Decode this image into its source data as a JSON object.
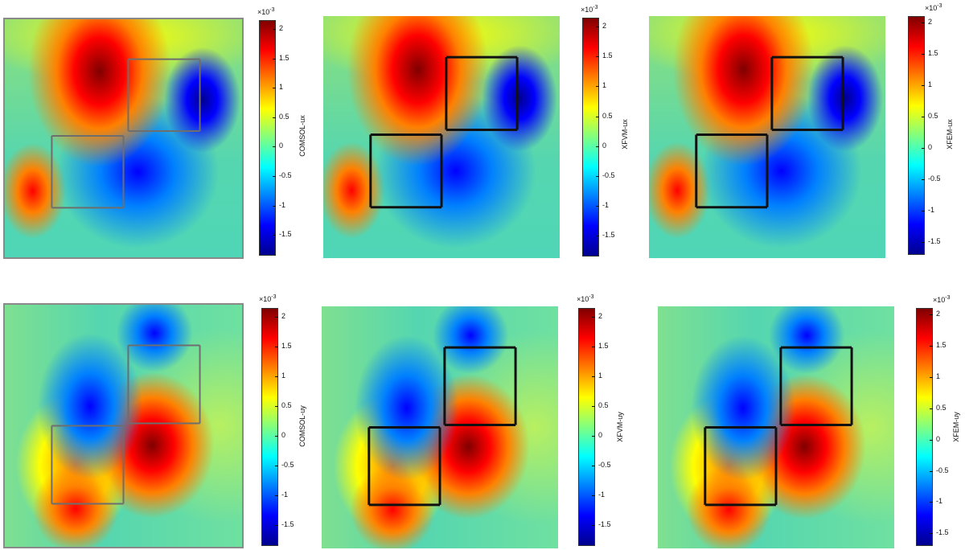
{
  "colors": {
    "c0": "#00008f",
    "c1": "#0000ff",
    "c2": "#0080ff",
    "c3": "#00ffff",
    "c4": "#80ff80",
    "c5": "#ffff00",
    "c6": "#ff8000",
    "c7": "#ff0000",
    "c8": "#800000",
    "background": "#4fd6b6",
    "crack": "#111111",
    "gray_crack": "#6e6e6e"
  },
  "chart_data": [
    {
      "type": "heatmap",
      "title": "",
      "colorbar_label": "COMSOL-ux",
      "colorbar_exponent": "×10",
      "colorbar_exponent_power": "-3",
      "colorbar_range": [
        -1.85,
        2.15
      ],
      "colorbar_ticks": [
        "2",
        "1.5",
        "1",
        "0.5",
        "0",
        "-0.5",
        "-1",
        "-1.5"
      ],
      "crack_style": "gray"
    },
    {
      "type": "heatmap",
      "title": "",
      "colorbar_label": "XFVM-ux",
      "colorbar_exponent": "×10",
      "colorbar_exponent_power": "-3",
      "colorbar_range": [
        -1.85,
        2.15
      ],
      "colorbar_ticks": [
        "2",
        "1.5",
        "1",
        "0.5",
        "0",
        "-0.5",
        "-1",
        "-1.5"
      ],
      "crack_style": "black"
    },
    {
      "type": "heatmap",
      "title": "",
      "colorbar_label": "XFEM-ux",
      "colorbar_exponent": "×10",
      "colorbar_exponent_power": "-3",
      "colorbar_range": [
        -1.7,
        2.1
      ],
      "colorbar_ticks": [
        "2",
        "1.5",
        "1",
        "0.5",
        "0",
        "-0.5",
        "-1",
        "-1.5"
      ],
      "crack_style": "black"
    },
    {
      "type": "heatmap",
      "title": "",
      "colorbar_label": "COMSOL-uy",
      "colorbar_exponent": "×10",
      "colorbar_exponent_power": "-3",
      "colorbar_range": [
        -1.85,
        2.15
      ],
      "colorbar_ticks": [
        "2",
        "1.5",
        "1",
        "0.5",
        "0",
        "-0.5",
        "-1",
        "-1.5"
      ],
      "crack_style": "gray"
    },
    {
      "type": "heatmap",
      "title": "",
      "colorbar_label": "XFVM-uy",
      "colorbar_exponent": "×10",
      "colorbar_exponent_power": "-3",
      "colorbar_range": [
        -1.85,
        2.15
      ],
      "colorbar_ticks": [
        "2",
        "1.5",
        "1",
        "0.5",
        "0",
        "-0.5",
        "-1",
        "-1.5"
      ],
      "crack_style": "black"
    },
    {
      "type": "heatmap",
      "title": "",
      "colorbar_label": "XFEM-uy",
      "colorbar_exponent": "×10",
      "colorbar_exponent_power": "-3",
      "colorbar_range": [
        -1.7,
        2.1
      ],
      "colorbar_ticks": [
        "2",
        "1.5",
        "1",
        "0.5",
        "0",
        "-0.5",
        "-1",
        "-1.5"
      ],
      "crack_style": "black"
    }
  ]
}
